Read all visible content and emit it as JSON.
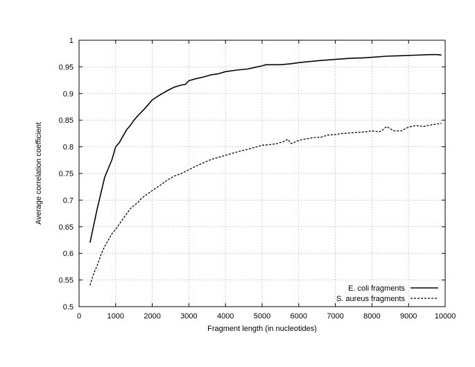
{
  "chart_data": {
    "type": "line",
    "title": "",
    "xlabel": "Fragment length (in nucleotides)",
    "ylabel": "Average correlation coefficient",
    "xlim": [
      0,
      10000
    ],
    "ylim": [
      0.5,
      1.0
    ],
    "xticks": [
      0,
      1000,
      2000,
      3000,
      4000,
      5000,
      6000,
      7000,
      8000,
      9000,
      10000
    ],
    "xtick_labels": [
      "0",
      "1000",
      "2000",
      "3000",
      "4000",
      "5000",
      "6000",
      "7000",
      "8000",
      "9000",
      "10000"
    ],
    "yticks": [
      0.5,
      0.55,
      0.6,
      0.65,
      0.7,
      0.75,
      0.8,
      0.85,
      0.9,
      0.95,
      1.0
    ],
    "ytick_labels": [
      "0.5",
      "0.55",
      "0.6",
      "0.65",
      "0.7",
      "0.75",
      "0.8",
      "0.85",
      "0.9",
      "0.95",
      "1"
    ],
    "grid": true,
    "legend_position": "bottom-right",
    "series": [
      {
        "name": "E. coli fragments",
        "style": "solid",
        "color": "#000000",
        "x": [
          300,
          500,
          700,
          900,
          1000,
          1100,
          1200,
          1300,
          1400,
          1500,
          1600,
          1700,
          1800,
          1900,
          2000,
          2200,
          2400,
          2600,
          2800,
          2900,
          3000,
          3200,
          3400,
          3600,
          3800,
          4000,
          4300,
          4600,
          4800,
          5000,
          5100,
          5500,
          5800,
          6000,
          6300,
          6600,
          7000,
          7400,
          7800,
          8000,
          8400,
          8800,
          9200,
          9600,
          9800,
          9900
        ],
        "y": [
          0.62,
          0.685,
          0.743,
          0.776,
          0.8,
          0.808,
          0.82,
          0.832,
          0.84,
          0.85,
          0.858,
          0.865,
          0.872,
          0.88,
          0.888,
          0.897,
          0.905,
          0.912,
          0.916,
          0.917,
          0.924,
          0.928,
          0.931,
          0.935,
          0.937,
          0.941,
          0.944,
          0.946,
          0.949,
          0.952,
          0.954,
          0.954,
          0.956,
          0.958,
          0.96,
          0.962,
          0.964,
          0.966,
          0.967,
          0.968,
          0.97,
          0.971,
          0.972,
          0.973,
          0.973,
          0.972
        ]
      },
      {
        "name": "S. aureus fragments",
        "style": "dashed",
        "color": "#000000",
        "x": [
          300,
          400,
          500,
          600,
          700,
          800,
          900,
          1000,
          1100,
          1200,
          1300,
          1400,
          1500,
          1600,
          1700,
          1800,
          1900,
          2000,
          2200,
          2400,
          2600,
          2800,
          3000,
          3200,
          3400,
          3600,
          3800,
          4000,
          4200,
          4400,
          4600,
          4800,
          5000,
          5200,
          5400,
          5600,
          5700,
          5800,
          6000,
          6200,
          6400,
          6600,
          6800,
          7000,
          7200,
          7400,
          7600,
          7800,
          8000,
          8200,
          8300,
          8400,
          8600,
          8800,
          9000,
          9200,
          9400,
          9600,
          9800,
          9900
        ],
        "y": [
          0.54,
          0.562,
          0.578,
          0.598,
          0.613,
          0.625,
          0.637,
          0.645,
          0.655,
          0.665,
          0.674,
          0.684,
          0.69,
          0.695,
          0.703,
          0.708,
          0.713,
          0.718,
          0.727,
          0.737,
          0.745,
          0.75,
          0.757,
          0.764,
          0.77,
          0.776,
          0.78,
          0.784,
          0.788,
          0.792,
          0.795,
          0.799,
          0.803,
          0.804,
          0.806,
          0.81,
          0.814,
          0.806,
          0.812,
          0.815,
          0.817,
          0.818,
          0.822,
          0.823,
          0.825,
          0.826,
          0.827,
          0.828,
          0.83,
          0.828,
          0.832,
          0.838,
          0.83,
          0.83,
          0.837,
          0.84,
          0.838,
          0.841,
          0.843,
          0.844
        ]
      }
    ]
  }
}
